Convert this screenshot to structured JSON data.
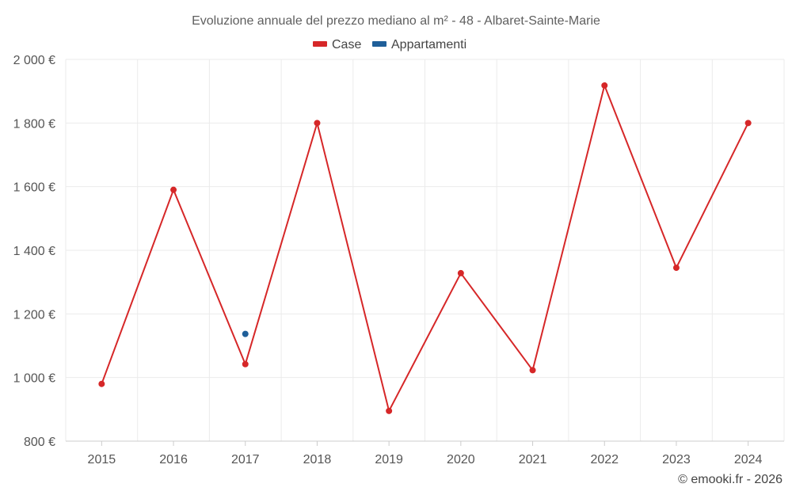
{
  "chart_data": {
    "type": "line",
    "title": "Evoluzione annuale del prezzo mediano al m² - 48 - Albaret-Sainte-Marie",
    "categories": [
      "2015",
      "2016",
      "2017",
      "2018",
      "2019",
      "2020",
      "2021",
      "2022",
      "2023",
      "2024"
    ],
    "series": [
      {
        "name": "Case",
        "color": "#d62728",
        "values": [
          980,
          1590,
          1042,
          1800,
          895,
          1328,
          1023,
          1918,
          1345,
          1800
        ]
      },
      {
        "name": "Appartamenti",
        "color": "#1f5f99",
        "values": [
          null,
          null,
          1137,
          null,
          null,
          null,
          null,
          null,
          null,
          null
        ]
      }
    ],
    "ylim": [
      800,
      2000
    ],
    "yticks": [
      800,
      1000,
      1200,
      1400,
      1600,
      1800,
      2000
    ],
    "ytick_labels": [
      "800 €",
      "1 000 €",
      "1 200 €",
      "1 400 €",
      "1 600 €",
      "1 800 €",
      "2 000 €"
    ],
    "xlabel": "",
    "ylabel": "",
    "grid": true,
    "legend_position": "top-center",
    "credit": "© emooki.fr - 2026"
  }
}
